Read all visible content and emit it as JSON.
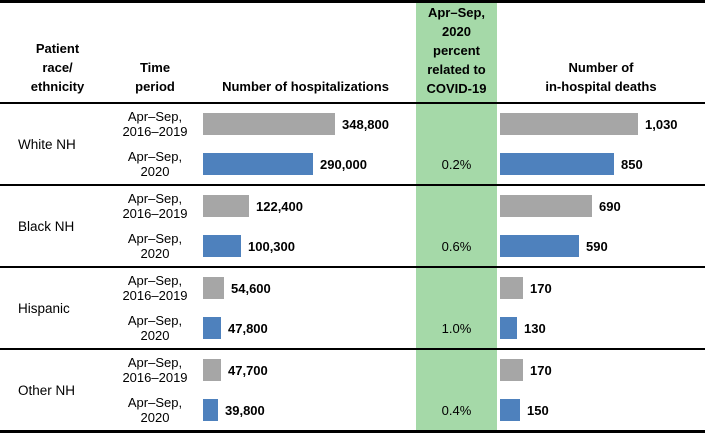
{
  "colors": {
    "bar_prior": "#A6A6A6",
    "bar_2020": "#4E81BD",
    "covid_band": "#A5D9A8",
    "rule": "#000000"
  },
  "header": {
    "race_lines": [
      "Patient",
      "race/",
      "ethnicity"
    ],
    "period_lines": [
      "Time",
      "period"
    ],
    "hospitalizations": "Number of hospitalizations",
    "covid_lines": [
      "Apr–Sep,",
      "2020",
      "percent",
      "related to",
      "COVID-19"
    ],
    "deaths_lines": [
      "Number of",
      "in-hospital deaths"
    ]
  },
  "chart_data": {
    "type": "bar",
    "orientation": "horizontal",
    "axes": {
      "hospitalizations_max": 348800,
      "deaths_max": 1030
    },
    "series_periods": [
      "Apr–Sep, 2016–2019",
      "Apr–Sep, 2020"
    ],
    "groups": [
      {
        "race": "White NH",
        "rows": [
          {
            "period": [
              "Apr–Sep,",
              "2016–2019"
            ],
            "hospitalizations": 348800,
            "hospitalizations_label": "348,800",
            "covid_pct": "",
            "deaths": 1030,
            "deaths_label": "1,030"
          },
          {
            "period": [
              "Apr–Sep,",
              "2020"
            ],
            "hospitalizations": 290000,
            "hospitalizations_label": "290,000",
            "covid_pct": "0.2%",
            "deaths": 850,
            "deaths_label": "850"
          }
        ]
      },
      {
        "race": "Black NH",
        "rows": [
          {
            "period": [
              "Apr–Sep,",
              "2016–2019"
            ],
            "hospitalizations": 122400,
            "hospitalizations_label": "122,400",
            "covid_pct": "",
            "deaths": 690,
            "deaths_label": "690"
          },
          {
            "period": [
              "Apr–Sep,",
              "2020"
            ],
            "hospitalizations": 100300,
            "hospitalizations_label": "100,300",
            "covid_pct": "0.6%",
            "deaths": 590,
            "deaths_label": "590"
          }
        ]
      },
      {
        "race": "Hispanic",
        "rows": [
          {
            "period": [
              "Apr–Sep,",
              "2016–2019"
            ],
            "hospitalizations": 54600,
            "hospitalizations_label": "54,600",
            "covid_pct": "",
            "deaths": 170,
            "deaths_label": "170"
          },
          {
            "period": [
              "Apr–Sep,",
              "2020"
            ],
            "hospitalizations": 47800,
            "hospitalizations_label": "47,800",
            "covid_pct": "1.0%",
            "deaths": 130,
            "deaths_label": "130"
          }
        ]
      },
      {
        "race": "Other NH",
        "rows": [
          {
            "period": [
              "Apr–Sep,",
              "2016–2019"
            ],
            "hospitalizations": 47700,
            "hospitalizations_label": "47,700",
            "covid_pct": "",
            "deaths": 170,
            "deaths_label": "170"
          },
          {
            "period": [
              "Apr–Sep,",
              "2020"
            ],
            "hospitalizations": 39800,
            "hospitalizations_label": "39,800",
            "covid_pct": "0.4%",
            "deaths": 150,
            "deaths_label": "150"
          }
        ]
      }
    ]
  }
}
